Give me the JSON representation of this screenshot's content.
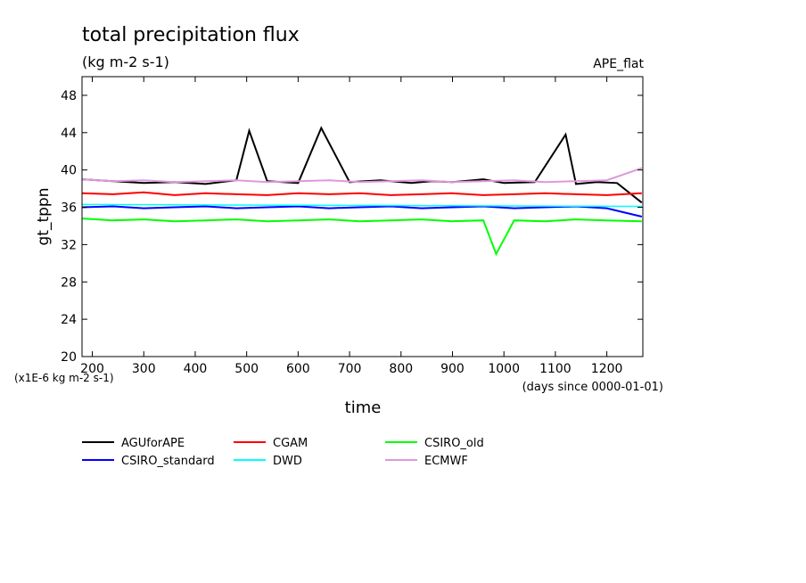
{
  "chart_data": {
    "type": "line",
    "title": "total precipitation flux",
    "subtitle": "(kg m-2 s-1)",
    "dataset_label": "APE_flat",
    "xlabel": "time",
    "ylabel": "gt_tppn",
    "x_unit_note": "(days since 0000-01-01)",
    "y_unit_note": "(x1E-6 kg m-2 s-1)",
    "xlim": [
      180,
      1270
    ],
    "ylim": [
      20,
      50
    ],
    "x_ticks": [
      200,
      300,
      400,
      500,
      600,
      700,
      800,
      900,
      1000,
      1100,
      1200
    ],
    "y_ticks": [
      20,
      24,
      28,
      32,
      36,
      40,
      44,
      48
    ],
    "grid": false,
    "legend_position": "bottom",
    "series": [
      {
        "name": "AGUforAPE",
        "color": "#000000",
        "x": [
          180,
          240,
          300,
          360,
          420,
          480,
          505,
          540,
          600,
          645,
          700,
          760,
          820,
          860,
          900,
          960,
          1000,
          1060,
          1120,
          1140,
          1180,
          1220,
          1268
        ],
        "y": [
          39,
          38.8,
          38.6,
          38.7,
          38.5,
          38.9,
          44.2,
          38.8,
          38.6,
          44.5,
          38.7,
          38.9,
          38.6,
          38.8,
          38.7,
          39,
          38.6,
          38.7,
          43.8,
          38.5,
          38.7,
          38.6,
          36.5
        ]
      },
      {
        "name": "CGAM",
        "color": "#ff0000",
        "x": [
          180,
          240,
          300,
          360,
          420,
          480,
          540,
          600,
          660,
          720,
          780,
          840,
          900,
          960,
          1020,
          1080,
          1140,
          1200,
          1268
        ],
        "y": [
          37.5,
          37.4,
          37.6,
          37.3,
          37.5,
          37.4,
          37.3,
          37.5,
          37.4,
          37.5,
          37.3,
          37.4,
          37.5,
          37.3,
          37.4,
          37.5,
          37.4,
          37.3,
          37.5
        ]
      },
      {
        "name": "CSIRO_old",
        "color": "#00ff00",
        "x": [
          180,
          240,
          300,
          360,
          420,
          480,
          540,
          600,
          660,
          720,
          780,
          840,
          900,
          960,
          985,
          1020,
          1080,
          1140,
          1200,
          1268
        ],
        "y": [
          34.8,
          34.6,
          34.7,
          34.5,
          34.6,
          34.7,
          34.5,
          34.6,
          34.7,
          34.5,
          34.6,
          34.7,
          34.5,
          34.6,
          31,
          34.6,
          34.5,
          34.7,
          34.6,
          34.5
        ]
      },
      {
        "name": "CSIRO_standard",
        "color": "#0000ff",
        "x": [
          180,
          240,
          300,
          360,
          420,
          480,
          540,
          600,
          660,
          720,
          780,
          840,
          900,
          960,
          1020,
          1080,
          1140,
          1200,
          1268
        ],
        "y": [
          36,
          36.1,
          35.9,
          36,
          36.1,
          35.9,
          36,
          36.1,
          35.9,
          36,
          36.1,
          35.9,
          36,
          36.1,
          35.9,
          36,
          36.1,
          35.9,
          35
        ]
      },
      {
        "name": "DWD",
        "color": "#00ffff",
        "x": [
          180,
          1268
        ],
        "y": [
          36.3,
          36.1
        ]
      },
      {
        "name": "ECMWF",
        "color": "#dd99dd",
        "x": [
          180,
          240,
          300,
          360,
          420,
          480,
          540,
          600,
          660,
          720,
          780,
          840,
          900,
          960,
          1020,
          1080,
          1140,
          1200,
          1268
        ],
        "y": [
          39,
          38.8,
          38.9,
          38.7,
          38.8,
          38.9,
          38.7,
          38.8,
          38.9,
          38.7,
          38.8,
          38.9,
          38.7,
          38.8,
          38.9,
          38.7,
          38.8,
          38.9,
          40.2
        ]
      }
    ]
  }
}
